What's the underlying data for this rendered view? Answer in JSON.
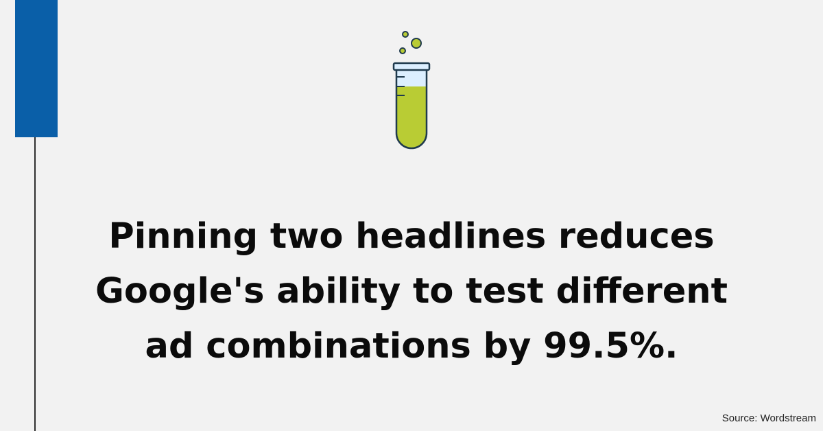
{
  "headline": {
    "lines": [
      "Pinning two headlines reduces",
      "Google's ability to test different",
      "ad combinations by 99.5%."
    ]
  },
  "source": "Source: Wordstream",
  "icon": {
    "name": "test-tube-icon"
  },
  "colors": {
    "background": "#f2f2f2",
    "accent_bar": "#0a5fa8",
    "side_line": "#2f2f2f",
    "liquid": "#b9cc34",
    "tube_glass": "#dcefff",
    "outline": "#1f3a4d",
    "text": "#0b0b0b"
  }
}
